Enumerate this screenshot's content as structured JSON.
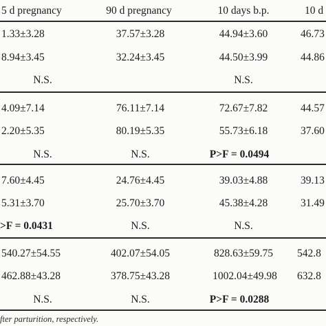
{
  "header": [
    "5 d pregnancy",
    "90 d pregnancy",
    "10 days b.p.",
    "10 d"
  ],
  "groups": [
    {
      "rows": [
        [
          "1.33±3.28",
          "37.57±3.28",
          "44.94±3.60",
          "46.73"
        ],
        [
          "8.94±3.45",
          "32.24±3.45",
          "44.50±3.99",
          "44.86"
        ],
        [
          "N.S.",
          "",
          "N.S.",
          ""
        ]
      ]
    },
    {
      "rows": [
        [
          "4.09±7.14",
          "76.11±7.14",
          "72.67±7.82",
          "44.57"
        ],
        [
          "2.20±5.35",
          "80.19±5.35",
          "55.73±6.18",
          "37.60"
        ],
        [
          "N.S.",
          "N.S.",
          "P>F = 0.0494",
          ""
        ]
      ]
    },
    {
      "rows": [
        [
          "7.60±4.45",
          "24.76±4.45",
          "39.03±4.88",
          "39.13"
        ],
        [
          "5.31±3.70",
          "25.70±3.70",
          "45.38±4.28",
          "31.49"
        ],
        [
          ">F = 0.0431",
          "N.S.",
          "N.S.",
          ""
        ]
      ]
    },
    {
      "rows": [
        [
          "540.27±54.55",
          "402.07±54.05",
          "828.63±59.75",
          "542.8"
        ],
        [
          "462.88±43.28",
          "378.75±43.28",
          "1002.04±49.98",
          "632.8"
        ],
        [
          "N.S.",
          "N.S.",
          "P>F = 0.0288",
          ""
        ]
      ]
    }
  ],
  "footnote": "fter parturition, respectively."
}
